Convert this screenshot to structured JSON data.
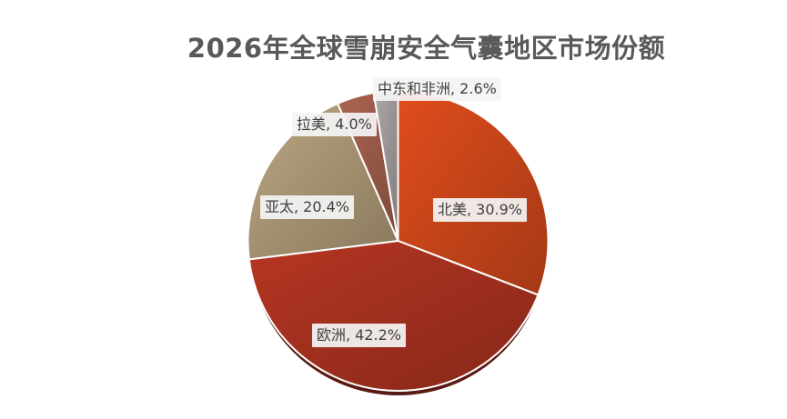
{
  "chart_data": {
    "type": "pie",
    "title": "2026年全球雪崩安全气囊地区市场份额",
    "slices": [
      {
        "name": "北美",
        "value": 30.9,
        "label": "北美, 30.9%",
        "color": "#c8451a"
      },
      {
        "name": "欧洲",
        "value": 42.2,
        "label": "欧洲, 42.2%",
        "color": "#a3301f"
      },
      {
        "name": "亚太",
        "value": 20.4,
        "label": "亚太, 20.4%",
        "color": "#a79473"
      },
      {
        "name": "拉美",
        "value": 4.0,
        "label": "拉美, 4.0%",
        "color": "#9a5a48"
      },
      {
        "name": "中东和非洲",
        "value": 2.6,
        "label": "中东和非洲, 2.6%",
        "color": "#9c9696"
      }
    ],
    "start_angle": 0,
    "direction": "clockwise",
    "legend": "none"
  }
}
